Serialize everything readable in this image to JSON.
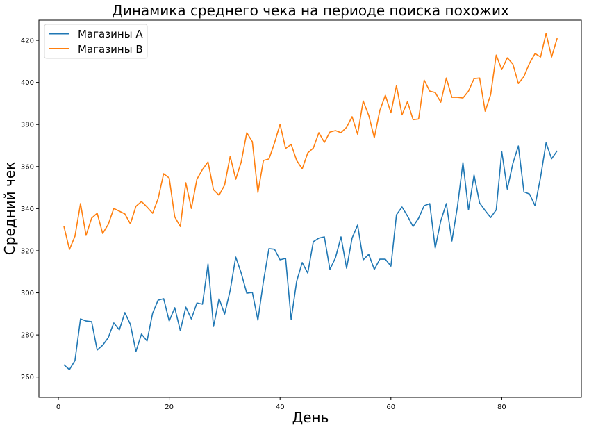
{
  "chart_data": {
    "type": "line",
    "title": "Динамика среднего чека на периоде поиска похожих",
    "xlabel": "День",
    "ylabel": "Средний чек",
    "xlim": [
      -3.5,
      94.5
    ],
    "ylim": [
      250,
      430
    ],
    "xticks": [
      0,
      20,
      40,
      60,
      80
    ],
    "yticks": [
      260,
      280,
      300,
      320,
      340,
      360,
      380,
      400,
      420
    ],
    "grid": false,
    "legend_position": "upper left",
    "x": [
      1,
      2,
      3,
      4,
      5,
      6,
      7,
      8,
      9,
      10,
      11,
      12,
      13,
      14,
      15,
      16,
      17,
      18,
      19,
      20,
      21,
      22,
      23,
      24,
      25,
      26,
      27,
      28,
      29,
      30,
      31,
      32,
      33,
      34,
      35,
      36,
      37,
      38,
      39,
      40,
      41,
      42,
      43,
      44,
      45,
      46,
      47,
      48,
      49,
      50,
      51,
      52,
      53,
      54,
      55,
      56,
      57,
      58,
      59,
      60,
      61,
      62,
      63,
      64,
      65,
      66,
      67,
      68,
      69,
      70,
      71,
      72,
      73,
      74,
      75,
      76,
      77,
      78,
      79,
      80,
      81,
      82,
      83,
      84,
      85,
      86,
      87,
      88,
      89,
      90
    ],
    "series": [
      {
        "name": "Магазины A",
        "color": "#1f77b4",
        "values": [
          265.8,
          263.5,
          267.8,
          287.6,
          286.6,
          286.3,
          272.8,
          275.1,
          278.7,
          285.7,
          282.4,
          290.6,
          285.0,
          272.1,
          280.4,
          277.1,
          290.3,
          296.5,
          297.2,
          286.6,
          292.9,
          282.0,
          293.2,
          287.6,
          295.2,
          294.6,
          313.7,
          284.0,
          297.2,
          289.9,
          301.2,
          317.0,
          309.4,
          299.8,
          300.2,
          287.0,
          305.5,
          321.0,
          320.7,
          315.7,
          316.4,
          287.3,
          305.5,
          314.4,
          309.4,
          324.3,
          326.0,
          326.6,
          311.1,
          316.7,
          326.6,
          311.7,
          326.0,
          332.2,
          315.7,
          318.3,
          311.1,
          316.0,
          316.0,
          312.7,
          337.1,
          340.8,
          336.5,
          331.5,
          335.5,
          341.4,
          342.4,
          321.3,
          334.2,
          342.4,
          324.6,
          341.0,
          361.9,
          339.4,
          356.0,
          342.7,
          339.1,
          335.8,
          339.4,
          367.1,
          349.3,
          361.5,
          369.8,
          348.0,
          347.0,
          341.4,
          355.0,
          371.3,
          363.7,
          367.5
        ]
      },
      {
        "name": "Магазины B",
        "color": "#ff7f0e",
        "values": [
          331.6,
          320.6,
          326.9,
          342.4,
          327.3,
          335.5,
          337.8,
          328.2,
          332.5,
          340.1,
          338.8,
          337.5,
          332.8,
          341.1,
          343.4,
          340.8,
          337.8,
          344.7,
          356.6,
          354.6,
          336.1,
          331.5,
          352.3,
          340.1,
          354.0,
          358.6,
          362.2,
          349.0,
          346.4,
          351.3,
          364.9,
          354.0,
          362.2,
          376.1,
          371.8,
          347.7,
          362.9,
          363.6,
          371.2,
          380.1,
          368.6,
          370.6,
          362.9,
          358.9,
          366.5,
          368.8,
          376.1,
          371.5,
          376.4,
          377.1,
          376.1,
          378.7,
          383.7,
          375.4,
          391.2,
          384.3,
          373.7,
          386.6,
          393.9,
          385.6,
          398.5,
          384.6,
          390.9,
          382.3,
          382.6,
          401.1,
          395.9,
          395.2,
          390.6,
          402.1,
          392.9,
          392.9,
          392.6,
          395.9,
          401.8,
          402.1,
          386.3,
          394.2,
          413.0,
          406.1,
          411.7,
          408.7,
          399.5,
          402.8,
          409.1,
          413.7,
          412.1,
          423.3,
          412.1,
          421.0
        ]
      }
    ]
  }
}
